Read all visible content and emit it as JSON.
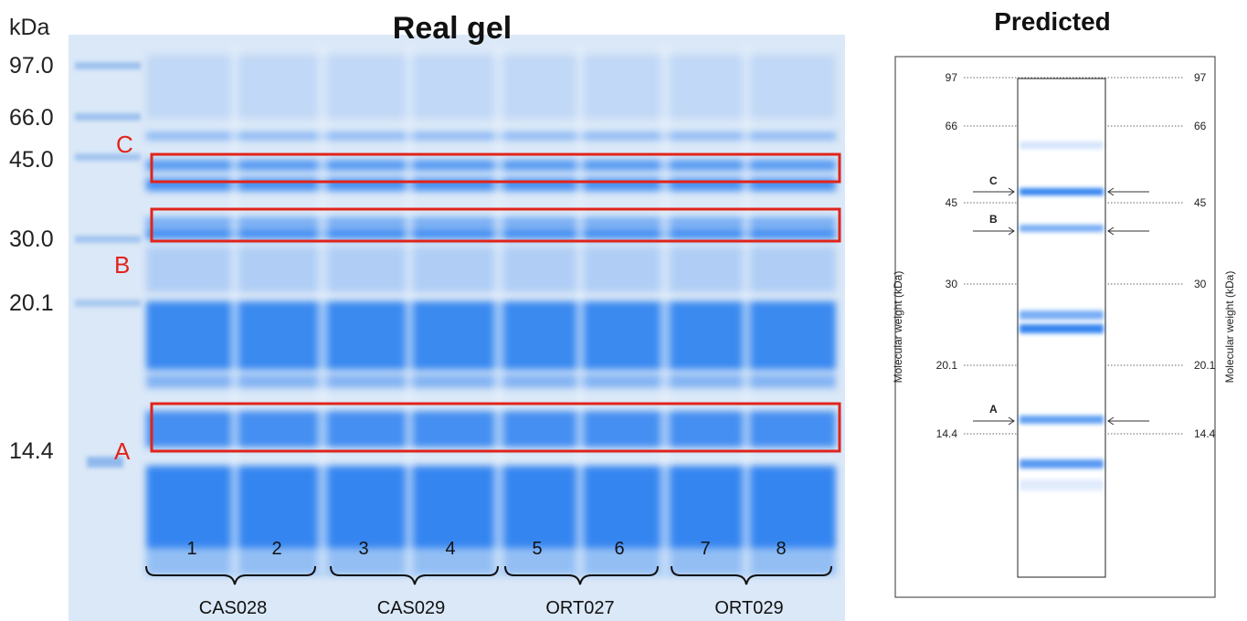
{
  "gel": {
    "title": "Real gel",
    "unit": "kDa",
    "markers": [
      "97.0",
      "66.0",
      "45.0",
      "30.0",
      "20.1",
      "14.4"
    ],
    "boxes": [
      "C",
      "B",
      "A"
    ],
    "lanes": [
      "1",
      "2",
      "3",
      "4",
      "5",
      "6",
      "7",
      "8"
    ],
    "groups": [
      "CAS028",
      "CAS029",
      "ORT027",
      "ORT029"
    ]
  },
  "predicted": {
    "title": "Predicted",
    "ticks": [
      "97",
      "66",
      "45",
      "30",
      "20.1",
      "14.4"
    ],
    "axis_label": "Molecular weight (kDa)",
    "arrows": [
      "C",
      "B",
      "A"
    ]
  }
}
